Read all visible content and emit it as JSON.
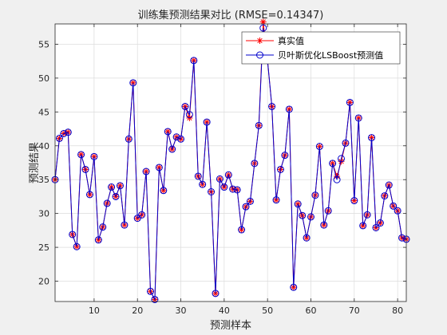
{
  "chart_data": {
    "type": "line",
    "title": "训练集预测结果对比 (RMSE=0.14347)",
    "xlabel": "预测样本",
    "ylabel": "预测结果",
    "xlim": [
      1,
      82
    ],
    "ylim": [
      17,
      58
    ],
    "xticks": [
      10,
      20,
      30,
      40,
      50,
      60,
      70,
      80
    ],
    "yticks": [
      20,
      25,
      30,
      35,
      40,
      45,
      50,
      55
    ],
    "grid": true,
    "legend_position": "top-right",
    "series": [
      {
        "name": "真实值",
        "color": "#ff0000",
        "marker": "asterisk",
        "values": [
          35.0,
          41.1,
          41.8,
          42.0,
          26.9,
          25.1,
          38.7,
          36.5,
          32.8,
          38.4,
          26.1,
          28.0,
          31.5,
          33.9,
          32.5,
          34.1,
          28.3,
          41.0,
          49.3,
          29.3,
          29.8,
          36.2,
          18.5,
          17.3,
          36.8,
          33.4,
          42.1,
          39.5,
          41.3,
          41.0,
          45.8,
          44.1,
          52.6,
          35.5,
          34.3,
          43.5,
          33.2,
          18.2,
          35.1,
          33.9,
          35.7,
          33.6,
          33.5,
          27.6,
          31.0,
          31.8,
          37.4,
          43.0,
          58.3,
          52.6,
          45.8,
          32.0,
          36.5,
          38.6,
          45.4,
          19.1,
          31.4,
          29.7,
          26.4,
          29.5,
          32.7,
          39.9,
          28.3,
          30.4,
          37.4,
          35.5,
          37.7,
          40.4,
          46.4,
          31.9,
          44.1,
          28.2,
          29.8,
          41.2,
          27.9,
          28.6,
          32.6,
          34.2,
          31.1,
          30.4,
          26.4,
          26.2
        ]
      },
      {
        "name": "贝叶斯优化LSBoost预测值",
        "color": "#0000cc",
        "marker": "circle",
        "values": [
          35.0,
          41.1,
          41.8,
          42.0,
          26.9,
          25.1,
          38.7,
          36.5,
          32.8,
          38.4,
          26.1,
          28.0,
          31.5,
          33.9,
          32.5,
          34.1,
          28.3,
          41.0,
          49.3,
          29.3,
          29.8,
          36.2,
          18.5,
          17.3,
          36.8,
          33.4,
          42.1,
          39.5,
          41.3,
          41.0,
          45.8,
          44.6,
          52.6,
          35.5,
          34.3,
          43.5,
          33.2,
          18.2,
          35.1,
          33.9,
          35.7,
          33.6,
          33.5,
          27.6,
          31.0,
          31.8,
          37.4,
          43.0,
          57.4,
          52.6,
          45.8,
          32.0,
          36.5,
          38.6,
          45.4,
          19.1,
          31.4,
          29.7,
          26.4,
          29.5,
          32.7,
          39.9,
          28.3,
          30.4,
          37.4,
          35.0,
          38.1,
          40.4,
          46.4,
          31.9,
          44.1,
          28.2,
          29.8,
          41.2,
          27.9,
          28.6,
          32.6,
          34.2,
          31.1,
          30.4,
          26.4,
          26.2
        ]
      }
    ]
  }
}
